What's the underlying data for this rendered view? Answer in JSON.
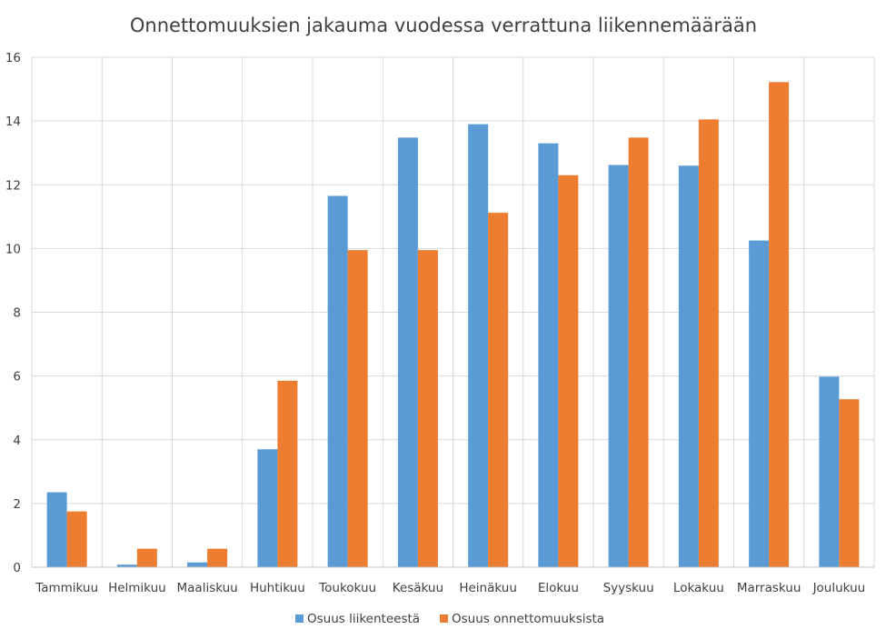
{
  "chart_data": {
    "type": "bar",
    "title": "Onnettomuuksien jakauma vuodessa verrattuna liikennemäärään",
    "xlabel": "",
    "ylabel": "",
    "ylim": [
      0,
      16
    ],
    "yticks": [
      0,
      2,
      4,
      6,
      8,
      10,
      12,
      14,
      16
    ],
    "grid": true,
    "legend_position": "bottom",
    "categories": [
      "Tammikuu",
      "Helmikuu",
      "Maaliskuu",
      "Huhtikuu",
      "Toukokuu",
      "Kesäkuu",
      "Heinäkuu",
      "Elokuu",
      "Syyskuu",
      "Lokakuu",
      "Marraskuu",
      "Joulukuu"
    ],
    "series": [
      {
        "name": "Osuus liikenteestä",
        "color": "#5b9bd5",
        "values": [
          2.35,
          0.08,
          0.15,
          3.7,
          11.65,
          13.48,
          13.9,
          13.3,
          12.62,
          12.6,
          10.25,
          5.98
        ]
      },
      {
        "name": "Osuus onnettomuuksista",
        "color": "#ed7d31",
        "values": [
          1.75,
          0.58,
          0.58,
          5.85,
          9.95,
          9.95,
          11.12,
          12.3,
          13.48,
          14.05,
          15.22,
          5.27
        ]
      }
    ]
  }
}
